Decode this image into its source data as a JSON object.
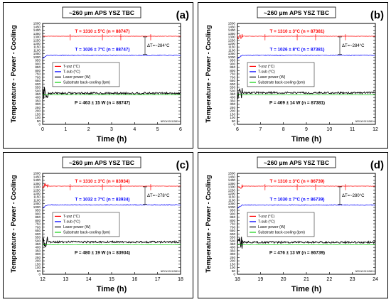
{
  "chart_data": [
    {
      "type": "line",
      "panel_label": "(a)",
      "title": "~260 µm APS YSZ TBC",
      "xlabel": "Time (h)",
      "ylabel": "Temperature - Power - Cooling",
      "xlim": [
        0,
        6
      ],
      "ylim": [
        0,
        1500
      ],
      "xticks": [
        0,
        1,
        2,
        3,
        4,
        5,
        6
      ],
      "yticks": [
        0,
        50,
        100,
        150,
        200,
        250,
        300,
        350,
        400,
        450,
        500,
        550,
        600,
        650,
        700,
        750,
        800,
        850,
        900,
        950,
        1000,
        1050,
        1100,
        1150,
        1200,
        1250,
        1300,
        1350,
        1400,
        1450,
        1500
      ],
      "grid": false,
      "legend": {
        "placement": "center-left"
      },
      "series": [
        {
          "name": "T-ysz (°C)",
          "color": "#ff0000",
          "mean": 1310,
          "std": 5,
          "n": 88747
        },
        {
          "name": "T-sub (°C)",
          "color": "#0000ff",
          "mean": 1026,
          "std": 7,
          "n": 88747
        },
        {
          "name": "Laser power (W)",
          "color": "#000000",
          "mean": 463,
          "std": 15,
          "n": 88747
        },
        {
          "name": "Substrate back-cooling (lpm)",
          "color": "#00cc00",
          "mean": 440
        }
      ],
      "annotations": {
        "tysz": "T = 1310 ± 5°C (n = 88747)",
        "tsub": "T = 1026 ± 7°C (n = 88747)",
        "power": "P = 463 ± 15 W (n = 88747)",
        "delta": "ΔT=~284°C",
        "nrc": "NRC#19111581"
      }
    },
    {
      "type": "line",
      "panel_label": "(b)",
      "title": "~260 µm APS YSZ TBC",
      "xlabel": "Time (h)",
      "ylabel": "Temperature - Power - Cooling",
      "xlim": [
        6,
        12
      ],
      "ylim": [
        0,
        1500
      ],
      "xticks": [
        6,
        7,
        8,
        9,
        10,
        11,
        12
      ],
      "yticks": [
        0,
        50,
        100,
        150,
        200,
        250,
        300,
        350,
        400,
        450,
        500,
        550,
        600,
        650,
        700,
        750,
        800,
        850,
        900,
        950,
        1000,
        1050,
        1100,
        1150,
        1200,
        1250,
        1300,
        1350,
        1400,
        1450,
        1500
      ],
      "grid": false,
      "legend": {
        "placement": "center-left"
      },
      "series": [
        {
          "name": "T-ysz (°C)",
          "color": "#ff0000",
          "mean": 1310,
          "std": 3,
          "n": 87381
        },
        {
          "name": "T-sub (°C)",
          "color": "#0000ff",
          "mean": 1026,
          "std": 8,
          "n": 87381
        },
        {
          "name": "Laser power (W)",
          "color": "#000000",
          "mean": 469,
          "std": 14,
          "n": 87381
        },
        {
          "name": "Substrate back-cooling (lpm)",
          "color": "#00cc00",
          "mean": 440
        }
      ],
      "annotations": {
        "tysz": "T = 1310 ± 3°C (n = 87381)",
        "tsub": "T = 1026 ± 8°C (n = 87381)",
        "power": "P = 469 ± 14 W (n = 87381)",
        "delta": "ΔT=~284°C",
        "nrc": "NRC#19111581"
      }
    },
    {
      "type": "line",
      "panel_label": "(c)",
      "title": "~260 µm APS YSZ TBC",
      "xlabel": "Time (h)",
      "ylabel": "Temperature - Power - Cooling",
      "xlim": [
        12,
        18
      ],
      "ylim": [
        0,
        1500
      ],
      "xticks": [
        12,
        13,
        14,
        15,
        16,
        17,
        18
      ],
      "yticks": [
        0,
        50,
        100,
        150,
        200,
        250,
        300,
        350,
        400,
        450,
        500,
        550,
        600,
        650,
        700,
        750,
        800,
        850,
        900,
        950,
        1000,
        1050,
        1100,
        1150,
        1200,
        1250,
        1300,
        1350,
        1400,
        1450,
        1500
      ],
      "grid": false,
      "legend": {
        "placement": "center-left"
      },
      "series": [
        {
          "name": "T-ysz (°C)",
          "color": "#ff0000",
          "mean": 1310,
          "std": 3,
          "n": 83934
        },
        {
          "name": "T-sub (°C)",
          "color": "#0000ff",
          "mean": 1032,
          "std": 7,
          "n": 83934
        },
        {
          "name": "Laser power (W)",
          "color": "#000000",
          "mean": 480,
          "std": 19,
          "n": 83934
        },
        {
          "name": "Substrate back-cooling (lpm)",
          "color": "#00cc00",
          "mean": 440
        }
      ],
      "annotations": {
        "tysz": "T = 1310 ± 3°C (n = 83934)",
        "tsub": "T = 1032 ± 7°C (n = 83934)",
        "power": "P = 480 ± 19 W (n = 83934)",
        "delta": "ΔT=~278°C",
        "nrc": "NRC#19111581"
      }
    },
    {
      "type": "line",
      "panel_label": "(d)",
      "title": "~260 µm APS YSZ TBC",
      "xlabel": "Time (h)",
      "ylabel": "Temperature - Power - Cooling",
      "xlim": [
        18,
        24
      ],
      "ylim": [
        0,
        1500
      ],
      "xticks": [
        18,
        19,
        20,
        21,
        22,
        23,
        24
      ],
      "yticks": [
        0,
        50,
        100,
        150,
        200,
        250,
        300,
        350,
        400,
        450,
        500,
        550,
        600,
        650,
        700,
        750,
        800,
        850,
        900,
        950,
        1000,
        1050,
        1100,
        1150,
        1200,
        1250,
        1300,
        1350,
        1400,
        1450,
        1500
      ],
      "grid": false,
      "legend": {
        "placement": "center-left"
      },
      "series": [
        {
          "name": "T-ysz (°C)",
          "color": "#ff0000",
          "mean": 1310,
          "std": 3,
          "n": 86739
        },
        {
          "name": "T-sub (°C)",
          "color": "#0000ff",
          "mean": 1030,
          "std": 7,
          "n": 86739
        },
        {
          "name": "Laser power (W)",
          "color": "#000000",
          "mean": 476,
          "std": 13,
          "n": 86739
        },
        {
          "name": "Substrate back-cooling (lpm)",
          "color": "#00cc00",
          "mean": 440
        }
      ],
      "annotations": {
        "tysz": "T = 1310 ± 3°C (n = 86739)",
        "tsub": "T = 1030 ± 7°C (n = 86739)",
        "power": "P = 476 ± 13 W (n = 86739)",
        "delta": "ΔT=~280°C",
        "nrc": "NRC#19111581"
      }
    }
  ]
}
